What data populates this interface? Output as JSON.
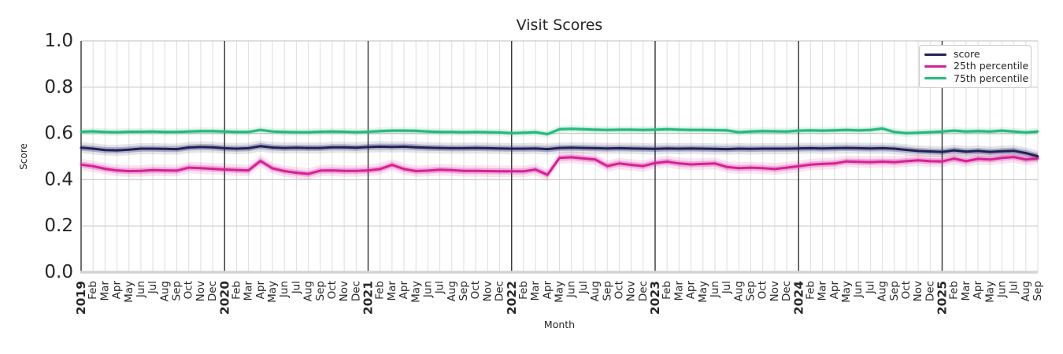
{
  "title": "Visit Scores",
  "axes": {
    "ylabel": "Score",
    "xlabel": "Month"
  },
  "legend": {
    "entries": [
      {
        "label": "score",
        "color": "#20215a"
      },
      {
        "label": "25th percentile",
        "color": "#d62096"
      },
      {
        "label": "75th percentile",
        "color": "#26b97d"
      }
    ]
  },
  "chart_data": {
    "type": "line",
    "title": "Visit Scores",
    "xlabel": "Month",
    "ylabel": "Score",
    "ylim": [
      0.0,
      1.0
    ],
    "yticks": [
      "0.0",
      "0.2",
      "0.4",
      "0.6",
      "0.8",
      "1.0"
    ],
    "grid": true,
    "legend_position": "upper right",
    "x_labels": [
      "2019",
      "Feb",
      "Mar",
      "Apr",
      "May",
      "Jun",
      "Jul",
      "Aug",
      "Sep",
      "Oct",
      "Nov",
      "Dec",
      "2020",
      "Feb",
      "Mar",
      "Apr",
      "May",
      "Jun",
      "Jul",
      "Aug",
      "Sep",
      "Oct",
      "Nov",
      "Dec",
      "2021",
      "Feb",
      "Mar",
      "Apr",
      "May",
      "Jun",
      "Jul",
      "Aug",
      "Sep",
      "Oct",
      "Nov",
      "Dec",
      "2022",
      "Feb",
      "Mar",
      "Apr",
      "May",
      "Jun",
      "Jul",
      "Aug",
      "Sep",
      "Oct",
      "Nov",
      "Dec",
      "2023",
      "Feb",
      "Mar",
      "Apr",
      "May",
      "Jun",
      "Jul",
      "Aug",
      "Sep",
      "Oct",
      "Nov",
      "Dec",
      "2024",
      "Feb",
      "Mar",
      "Apr",
      "May",
      "Jun",
      "Jul",
      "Aug",
      "Sep",
      "Oct",
      "Nov",
      "Dec",
      "2025",
      "Feb",
      "Mar",
      "Apr",
      "May",
      "Jun",
      "Jul",
      "Aug",
      "Sep"
    ],
    "series": [
      {
        "name": "score",
        "color": "#20215a",
        "band_inner": 0.013,
        "band_outer": 0.024,
        "values": [
          0.538,
          0.534,
          0.528,
          0.527,
          0.53,
          0.534,
          0.534,
          0.533,
          0.532,
          0.539,
          0.541,
          0.54,
          0.536,
          0.534,
          0.536,
          0.545,
          0.539,
          0.537,
          0.538,
          0.537,
          0.537,
          0.54,
          0.54,
          0.538,
          0.541,
          0.543,
          0.542,
          0.543,
          0.54,
          0.538,
          0.537,
          0.536,
          0.536,
          0.537,
          0.536,
          0.535,
          0.534,
          0.534,
          0.535,
          0.532,
          0.537,
          0.538,
          0.537,
          0.536,
          0.535,
          0.536,
          0.535,
          0.534,
          0.533,
          0.535,
          0.534,
          0.535,
          0.534,
          0.533,
          0.532,
          0.534,
          0.533,
          0.534,
          0.534,
          0.534,
          0.535,
          0.536,
          0.535,
          0.536,
          0.537,
          0.536,
          0.535,
          0.536,
          0.534,
          0.529,
          0.524,
          0.522,
          0.52,
          0.527,
          0.521,
          0.524,
          0.52,
          0.523,
          0.525,
          0.515,
          0.501
        ]
      },
      {
        "name": "25th percentile",
        "color": "#d62096",
        "band_inner": 0.013,
        "band_outer": 0.025,
        "values": [
          0.465,
          0.458,
          0.447,
          0.44,
          0.437,
          0.438,
          0.441,
          0.44,
          0.439,
          0.452,
          0.45,
          0.447,
          0.444,
          0.442,
          0.44,
          0.481,
          0.449,
          0.437,
          0.43,
          0.425,
          0.439,
          0.44,
          0.438,
          0.438,
          0.44,
          0.446,
          0.464,
          0.446,
          0.437,
          0.439,
          0.443,
          0.441,
          0.438,
          0.438,
          0.437,
          0.436,
          0.436,
          0.436,
          0.444,
          0.421,
          0.494,
          0.497,
          0.492,
          0.487,
          0.459,
          0.47,
          0.464,
          0.459,
          0.472,
          0.478,
          0.47,
          0.466,
          0.468,
          0.47,
          0.455,
          0.45,
          0.452,
          0.45,
          0.446,
          0.452,
          0.458,
          0.465,
          0.468,
          0.47,
          0.479,
          0.477,
          0.476,
          0.478,
          0.476,
          0.48,
          0.484,
          0.48,
          0.479,
          0.491,
          0.48,
          0.49,
          0.487,
          0.494,
          0.498,
          0.487,
          0.492
        ]
      },
      {
        "name": "75th percentile",
        "color": "#26b97d",
        "band_inner": 0.008,
        "band_outer": 0.016,
        "values": [
          0.607,
          0.609,
          0.606,
          0.605,
          0.607,
          0.607,
          0.608,
          0.606,
          0.606,
          0.608,
          0.61,
          0.61,
          0.608,
          0.606,
          0.606,
          0.615,
          0.608,
          0.606,
          0.605,
          0.605,
          0.607,
          0.608,
          0.607,
          0.605,
          0.607,
          0.61,
          0.612,
          0.612,
          0.611,
          0.608,
          0.606,
          0.606,
          0.605,
          0.606,
          0.605,
          0.604,
          0.601,
          0.603,
          0.605,
          0.597,
          0.618,
          0.62,
          0.618,
          0.616,
          0.615,
          0.616,
          0.616,
          0.615,
          0.616,
          0.618,
          0.616,
          0.615,
          0.615,
          0.614,
          0.613,
          0.605,
          0.608,
          0.61,
          0.609,
          0.608,
          0.612,
          0.613,
          0.612,
          0.613,
          0.615,
          0.613,
          0.615,
          0.621,
          0.606,
          0.601,
          0.603,
          0.605,
          0.608,
          0.612,
          0.608,
          0.61,
          0.608,
          0.612,
          0.608,
          0.604,
          0.608
        ]
      }
    ],
    "style": {
      "grid_minor_color": "#dedede",
      "grid_major_color": "#cccccc",
      "year_line_color": "#333333",
      "bottom_spine_color": "#d4d4d4",
      "tick_text_color": "#262626"
    }
  }
}
